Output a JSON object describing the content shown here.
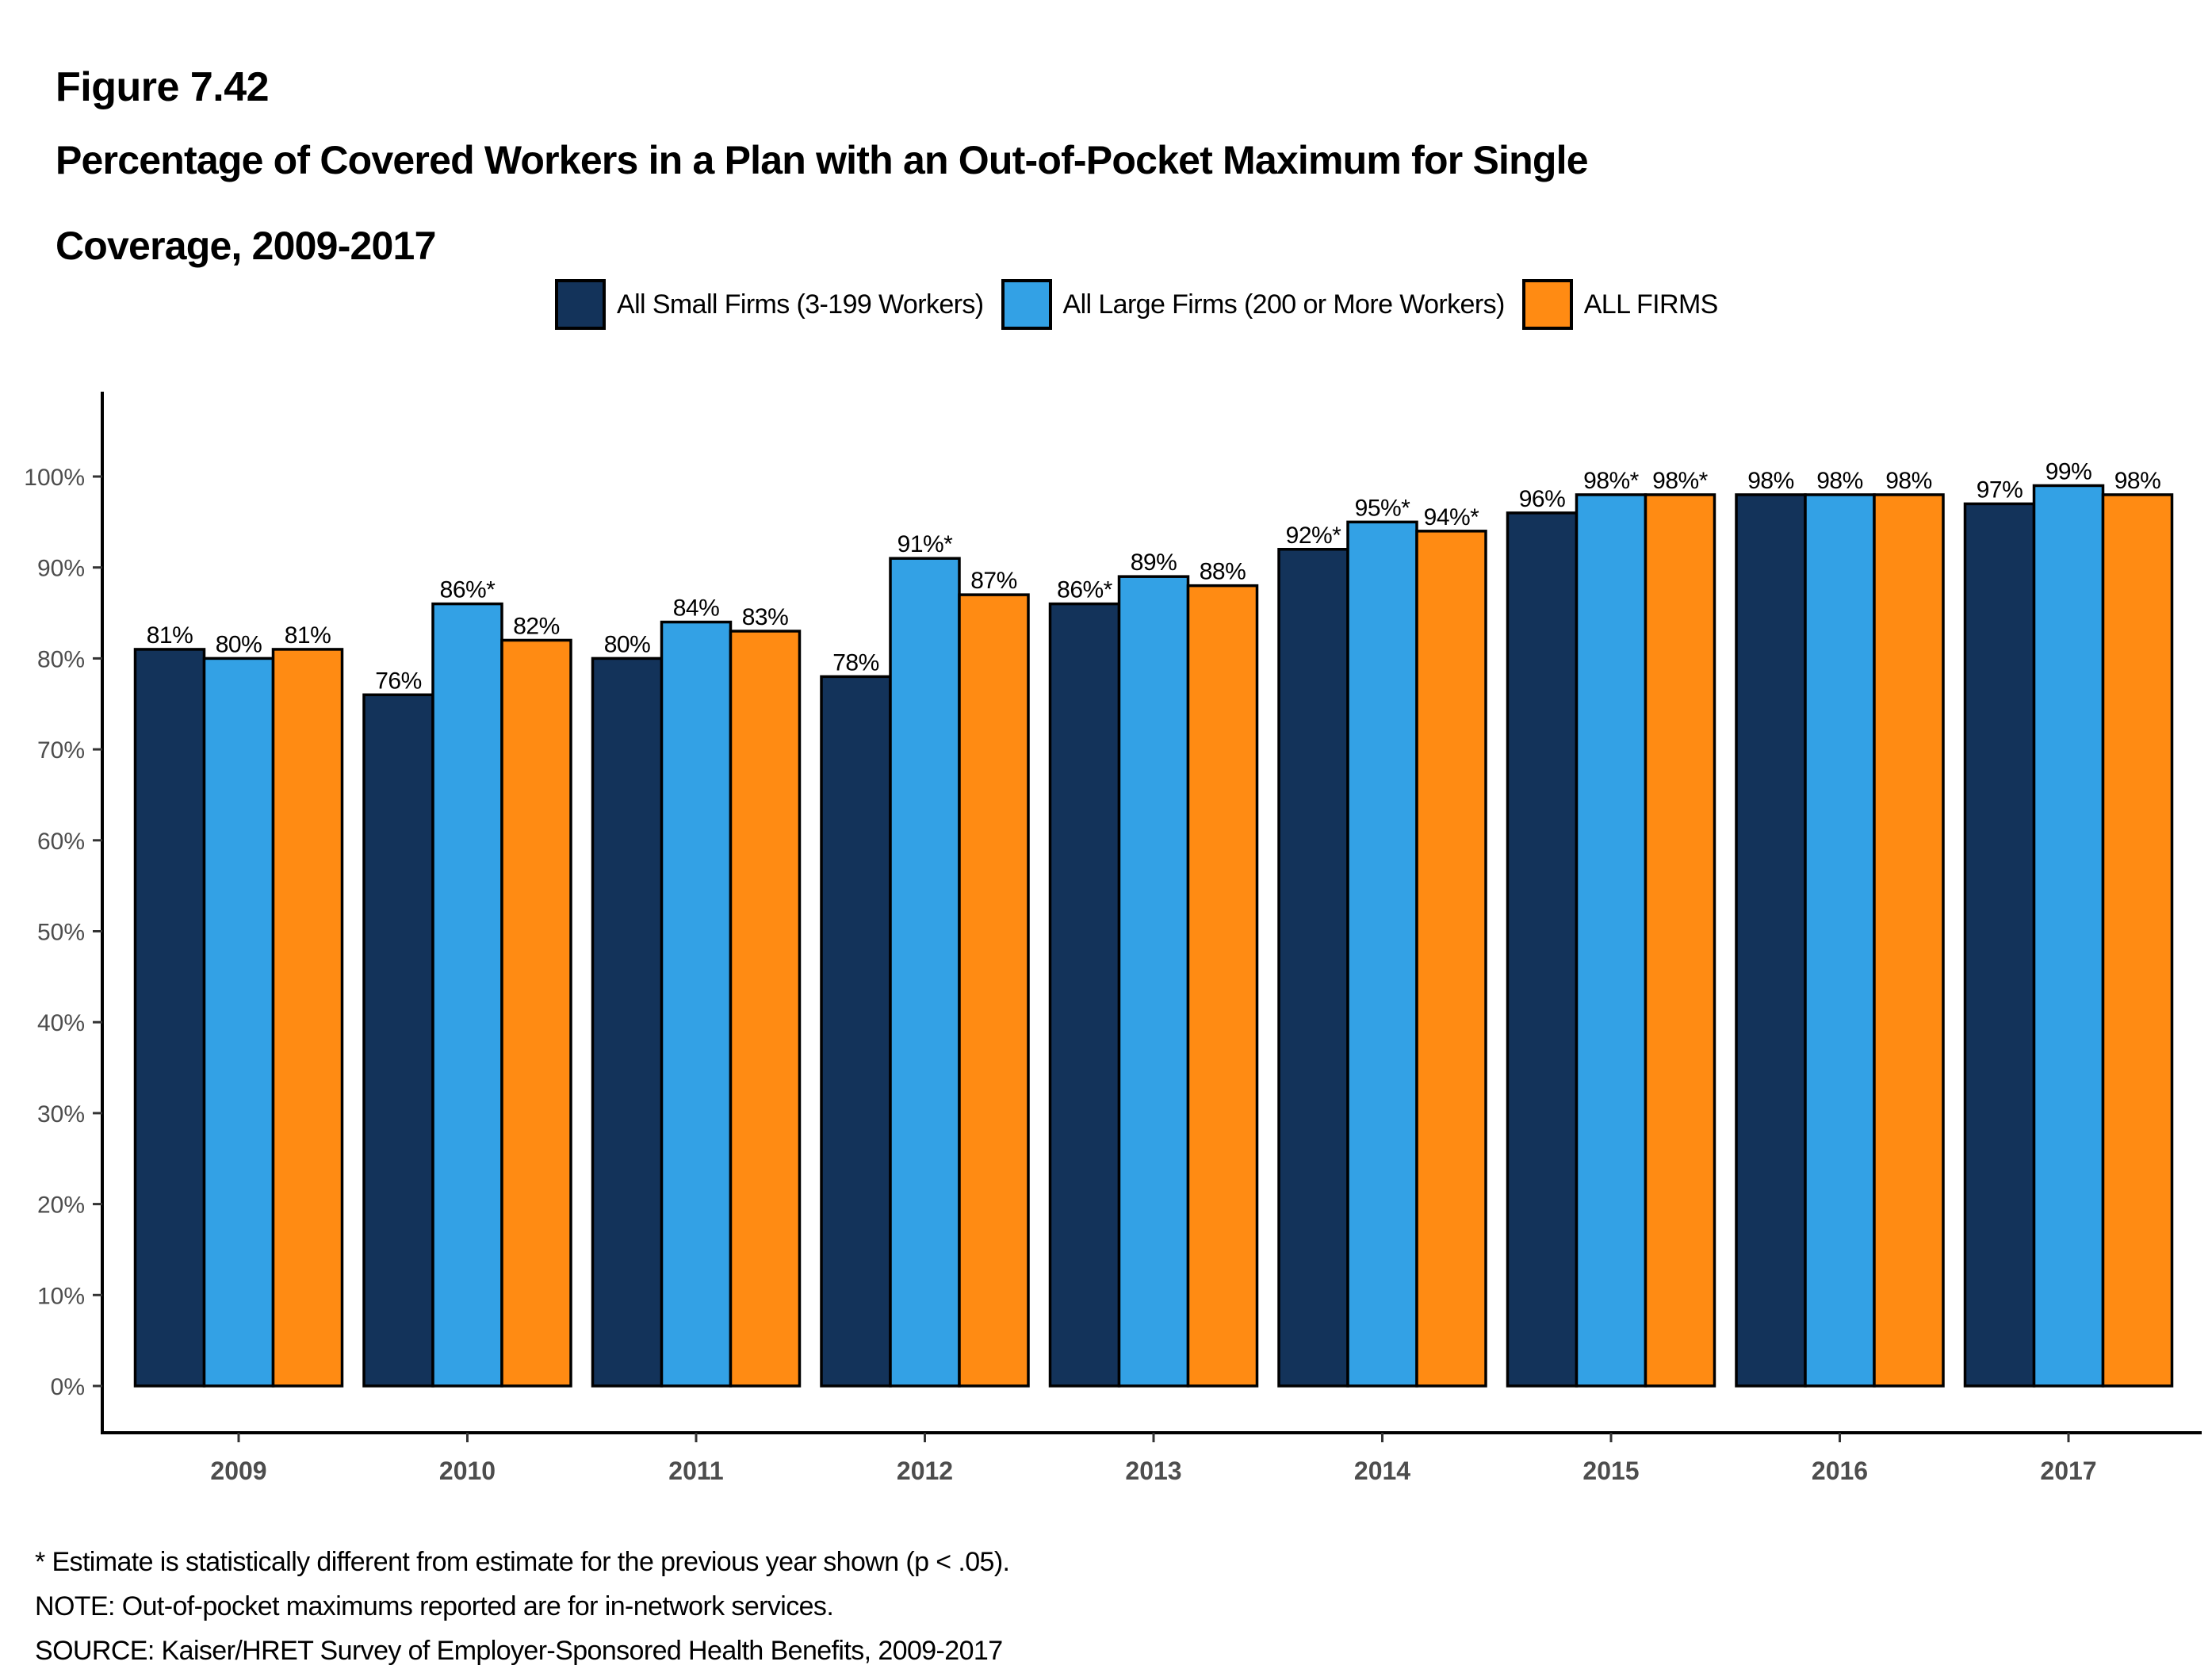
{
  "figure_number": "Figure 7.42",
  "title_lines": [
    "Percentage of Covered Workers in a Plan with an Out-of-Pocket Maximum for Single",
    "Coverage, 2009-2017"
  ],
  "legend": [
    {
      "label": "All Small Firms (3-199 Workers)",
      "color": "#13335A"
    },
    {
      "label": "All Large Firms (200 or More Workers)",
      "color": "#33A1E5"
    },
    {
      "label": "ALL FIRMS",
      "color": "#FF8B13"
    }
  ],
  "footnotes": {
    "asterisk": "* Estimate is statistically different from estimate for the previous year shown (p < .05).",
    "note": "NOTE: Out-of-pocket maximums reported are for in-network services.",
    "source": "SOURCE: Kaiser/HRET Survey of Employer-Sponsored Health Benefits, 2009-2017"
  },
  "chart_data": {
    "type": "bar",
    "title": "Percentage of Covered Workers in a Plan with an Out-of-Pocket Maximum for Single Coverage, 2009-2017",
    "xlabel": "",
    "ylabel": "",
    "categories": [
      "2009",
      "2010",
      "2011",
      "2012",
      "2013",
      "2014",
      "2015",
      "2016",
      "2017"
    ],
    "ylim": [
      0,
      100
    ],
    "yticks": [
      0,
      10,
      20,
      30,
      40,
      50,
      60,
      70,
      80,
      90,
      100
    ],
    "ytick_labels": [
      "0%",
      "10%",
      "20%",
      "30%",
      "40%",
      "50%",
      "60%",
      "70%",
      "80%",
      "90%",
      "100%"
    ],
    "grid": false,
    "legend_position": "top-center",
    "series": [
      {
        "name": "All Small Firms (3-199 Workers)",
        "color": "#13335A",
        "values": [
          81,
          76,
          80,
          78,
          86,
          92,
          96,
          98,
          97
        ],
        "significant": [
          false,
          false,
          false,
          false,
          true,
          true,
          false,
          false,
          false
        ]
      },
      {
        "name": "All Large Firms (200 or More Workers)",
        "color": "#33A1E5",
        "values": [
          80,
          86,
          84,
          91,
          89,
          95,
          98,
          98,
          99
        ],
        "significant": [
          false,
          true,
          false,
          true,
          false,
          true,
          true,
          false,
          false
        ]
      },
      {
        "name": "ALL FIRMS",
        "color": "#FF8B13",
        "values": [
          81,
          82,
          83,
          87,
          88,
          94,
          98,
          98,
          98
        ],
        "significant": [
          false,
          false,
          false,
          false,
          false,
          true,
          true,
          false,
          false
        ]
      }
    ],
    "label_suffix": "%",
    "significance_marker": "*"
  }
}
